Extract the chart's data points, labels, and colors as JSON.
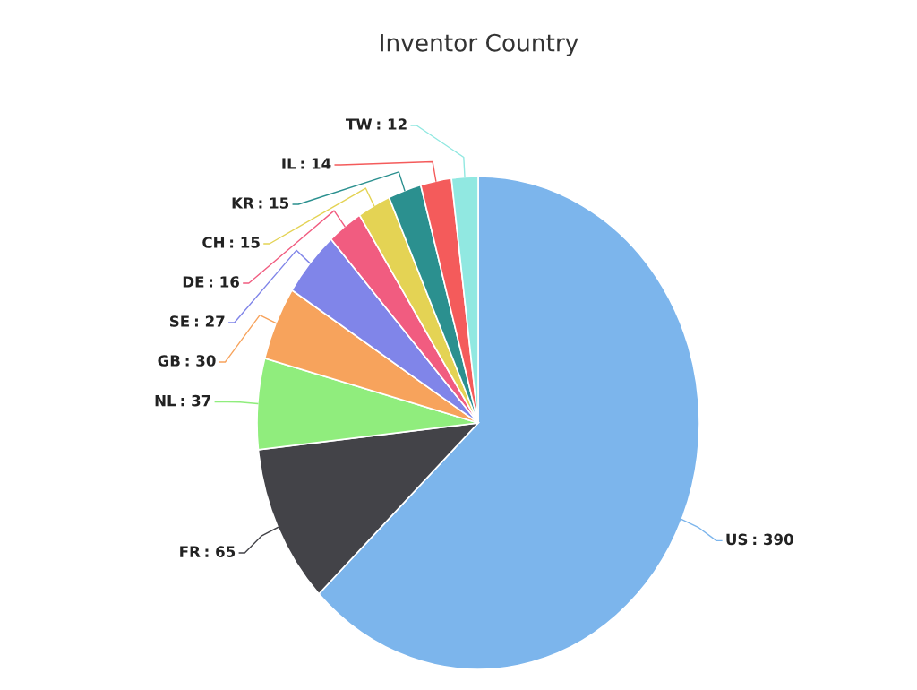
{
  "chart_data": {
    "type": "pie",
    "title": "Inventor Country",
    "categories": [
      "US",
      "FR",
      "NL",
      "GB",
      "SE",
      "DE",
      "CH",
      "KR",
      "IL",
      "TW"
    ],
    "values": [
      390,
      65,
      37,
      30,
      27,
      16,
      15,
      15,
      14,
      12
    ],
    "colors": [
      "#7cb5ec",
      "#434348",
      "#90ed7d",
      "#f7a35c",
      "#8085e9",
      "#f15c80",
      "#e4d354",
      "#2b908f",
      "#f45b5b",
      "#91e8e1"
    ],
    "value_labels": [
      ": 390",
      ": 65",
      ": 37",
      ": 30",
      ": 27",
      ": 16",
      ": 15",
      ": 15",
      ": 14",
      ": 12"
    ],
    "legend": false
  }
}
